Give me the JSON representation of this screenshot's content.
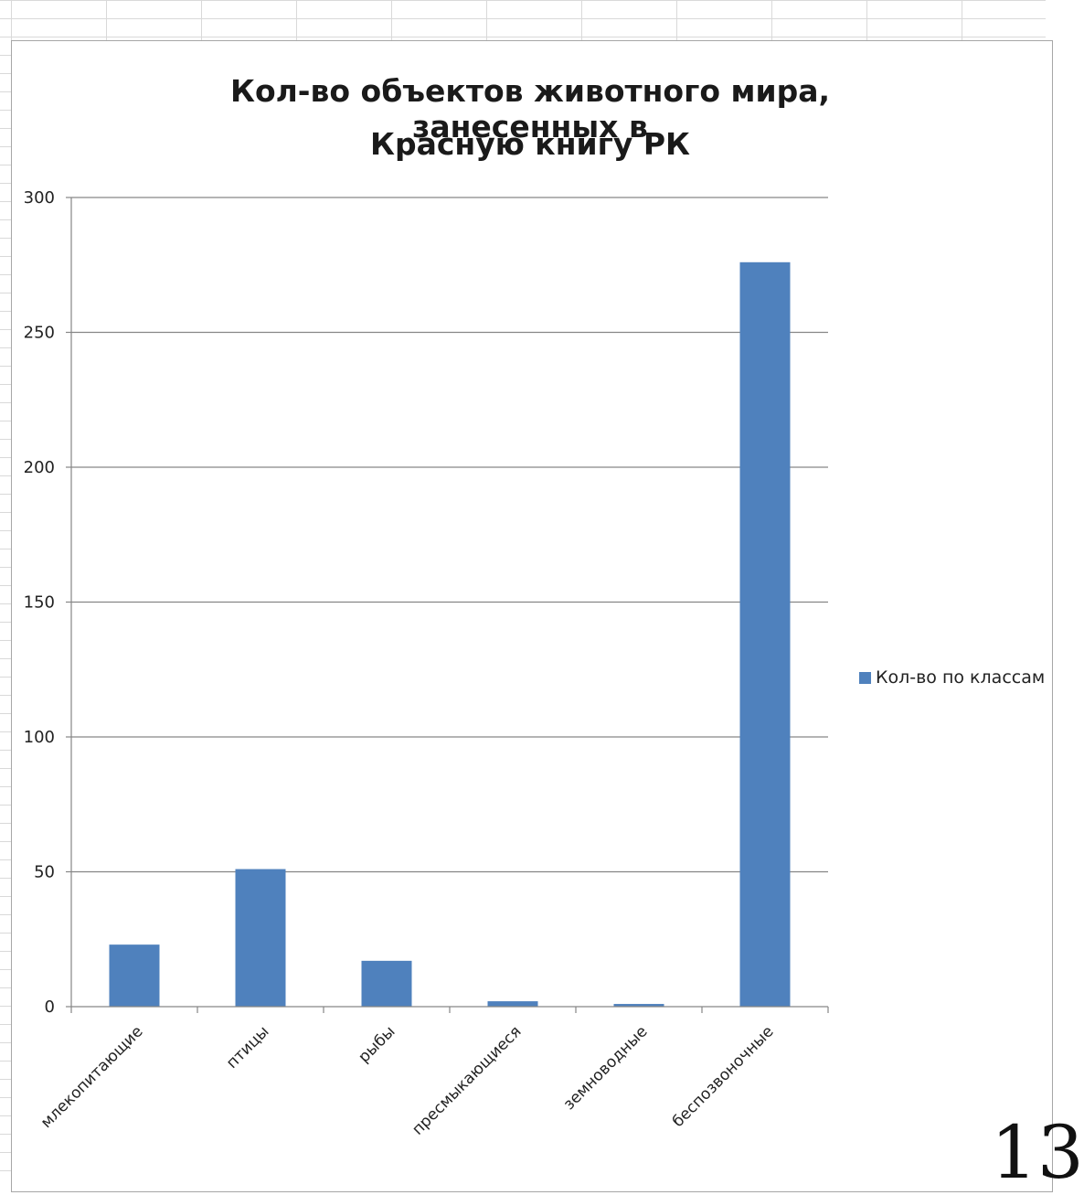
{
  "chart_data": {
    "type": "bar",
    "title": "Кол-во объектов животного мира, занесенных в Красную книгу РК",
    "title_lines": [
      "Кол-во объектов животного мира, занесенных в",
      "Красную книгу РК"
    ],
    "categories": [
      "млекопитающие",
      "птицы",
      "рыбы",
      "пресмыкающиеся",
      "земноводные",
      "беспозвоночные"
    ],
    "series": [
      {
        "name": "Кол-во по классам",
        "color": "#4f81bd",
        "values": [
          23,
          51,
          17,
          2,
          1,
          276
        ]
      }
    ],
    "xlabel": "",
    "ylabel": "",
    "ylim": [
      0,
      300
    ],
    "yticks": [
      0,
      50,
      100,
      150,
      200,
      250,
      300
    ],
    "grid": true,
    "legend": "right"
  },
  "page_number": "13"
}
